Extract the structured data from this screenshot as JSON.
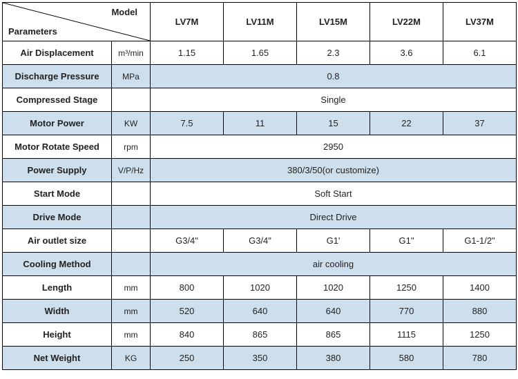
{
  "header": {
    "corner_model": "Model",
    "corner_params": "Parameters",
    "models": [
      "LV7M",
      "LV11M",
      "LV15M",
      "LV22M",
      "LV37M"
    ]
  },
  "rows": [
    {
      "param": "Air Displacement",
      "unit": "m³/min",
      "cells": [
        "1.15",
        "1.65",
        "2.3",
        "3.6",
        "6.1"
      ],
      "alt": false
    },
    {
      "param": "Discharge Pressure",
      "unit": "MPa",
      "merged": "0.8",
      "alt": true
    },
    {
      "param": "Compressed Stage",
      "unit": "",
      "merged": "Single",
      "alt": false
    },
    {
      "param": "Motor Power",
      "unit": "KW",
      "cells": [
        "7.5",
        "11",
        "15",
        "22",
        "37"
      ],
      "alt": true
    },
    {
      "param": "Motor Rotate Speed",
      "unit": "rpm",
      "merged": "2950",
      "alt": false
    },
    {
      "param": "Power Supply",
      "unit": "V/P/Hz",
      "merged": "380/3/50(or customize)",
      "alt": true
    },
    {
      "param": "Start Mode",
      "unit": "",
      "merged": "Soft Start",
      "alt": false
    },
    {
      "param": "Drive Mode",
      "unit": "",
      "merged": "Direct Drive",
      "alt": true
    },
    {
      "param": "Air outlet size",
      "unit": "",
      "cells": [
        "G3/4\"",
        "G3/4\"",
        "G1'",
        "G1\"",
        "G1-1/2\""
      ],
      "alt": false
    },
    {
      "param": "Cooling Method",
      "unit": "",
      "merged": "air cooling",
      "alt": true
    },
    {
      "param": "Length",
      "unit": "mm",
      "cells": [
        "800",
        "1020",
        "1020",
        "1250",
        "1400"
      ],
      "alt": false
    },
    {
      "param": "Width",
      "unit": "mm",
      "cells": [
        "520",
        "640",
        "640",
        "770",
        "880"
      ],
      "alt": true
    },
    {
      "param": "Height",
      "unit": "mm",
      "cells": [
        "840",
        "865",
        "865",
        "1115",
        "1250"
      ],
      "alt": false
    },
    {
      "param": "Net Weight",
      "unit": "KG",
      "cells": [
        "250",
        "350",
        "380",
        "580",
        "780"
      ],
      "alt": true
    }
  ],
  "colors": {
    "alt_bg": "#cddeed",
    "border": "#000000",
    "text": "#222222"
  }
}
